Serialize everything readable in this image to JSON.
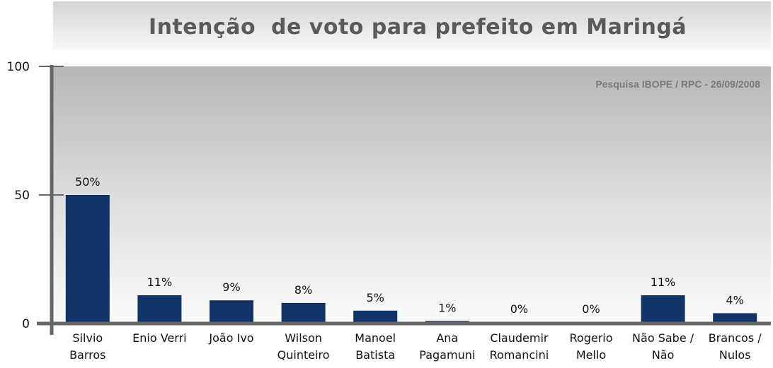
{
  "chart_data": {
    "type": "bar",
    "title": "Intenção  de voto para prefeito em Maringá",
    "source": "Pesquisa IBOPE / RPC - 26/09/2008",
    "categories": [
      [
        "Silvio",
        "Barros"
      ],
      [
        "Enio Verri"
      ],
      [
        "João Ivo"
      ],
      [
        "Wilson",
        "Quinteiro"
      ],
      [
        "Manoel",
        "Batista"
      ],
      [
        "Ana",
        "Pagamuni"
      ],
      [
        "Claudemir",
        "Romancini"
      ],
      [
        "Rogerio",
        "Mello"
      ],
      [
        "Não Sabe /",
        "Não"
      ],
      [
        "Brancos /",
        "Nulos"
      ]
    ],
    "values": [
      50,
      11,
      9,
      8,
      5,
      1,
      0,
      0,
      11,
      4
    ],
    "value_labels": [
      "50%",
      "11%",
      "9%",
      "8%",
      "5%",
      "1%",
      "0%",
      "0%",
      "11%",
      "4%"
    ],
    "ylim": [
      0,
      100
    ],
    "yticks": [
      "0",
      "50",
      "100"
    ],
    "grid": false,
    "bar_color": "#0f3465"
  }
}
